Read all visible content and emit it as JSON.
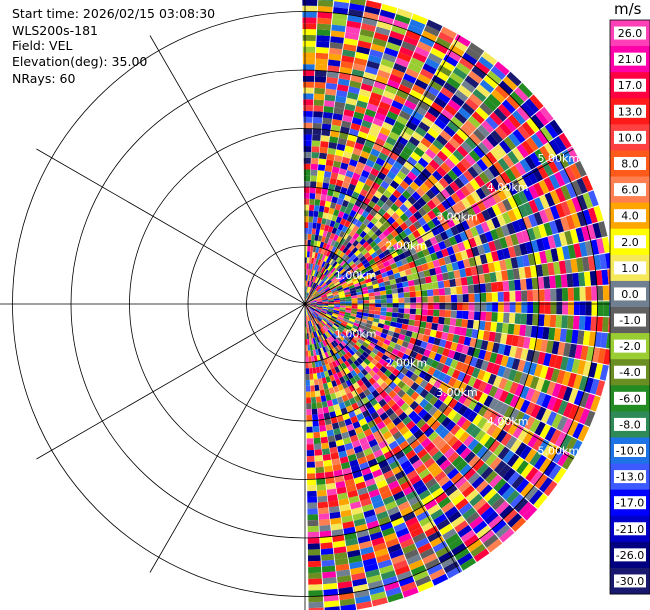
{
  "header": {
    "start_time": "Start time: 2026/02/15 03:08:30",
    "instrument": "WLS200s-181",
    "field": "Field: VEL",
    "elevation": "Elevation(deg): 35.00",
    "nrays": "NRays: 60"
  },
  "chart_data": {
    "type": "heatmap",
    "projection": "polar-ppi",
    "field": "VEL",
    "units": "m/s",
    "nrays": 60,
    "elevation_deg": 35.0,
    "azimuth_range_deg": [
      0,
      180
    ],
    "range_rings_km": [
      1,
      2,
      3,
      4,
      5
    ],
    "range_ring_labels": [
      "1.00km",
      "2.00km",
      "3.00km",
      "4.00km",
      "5.00km"
    ],
    "max_range_km": 5.3,
    "colorbar": {
      "labels": [
        "26.0",
        "21.0",
        "17.0",
        "13.0",
        "10.0",
        "8.0",
        "6.0",
        "4.0",
        "2.0",
        "1.0",
        "0.0",
        "-1.0",
        "-2.0",
        "-4.0",
        "-6.0",
        "-8.0",
        "-10.0",
        "-13.0",
        "-17.0",
        "-21.0",
        "-26.0",
        "-30.0"
      ],
      "colors": [
        "#ff3fb8",
        "#ff00aa",
        "#ff0040",
        "#ff1a1a",
        "#ff4040",
        "#ff5a1a",
        "#ff7f50",
        "#ffa500",
        "#ffff00",
        "#f5e85a",
        "#708090",
        "#606060",
        "#9acd32",
        "#6b8e23",
        "#228b22",
        "#2e8b57",
        "#1e73e6",
        "#3c5aff",
        "#0000ff",
        "#0000c8",
        "#000080",
        "#191970"
      ]
    }
  }
}
